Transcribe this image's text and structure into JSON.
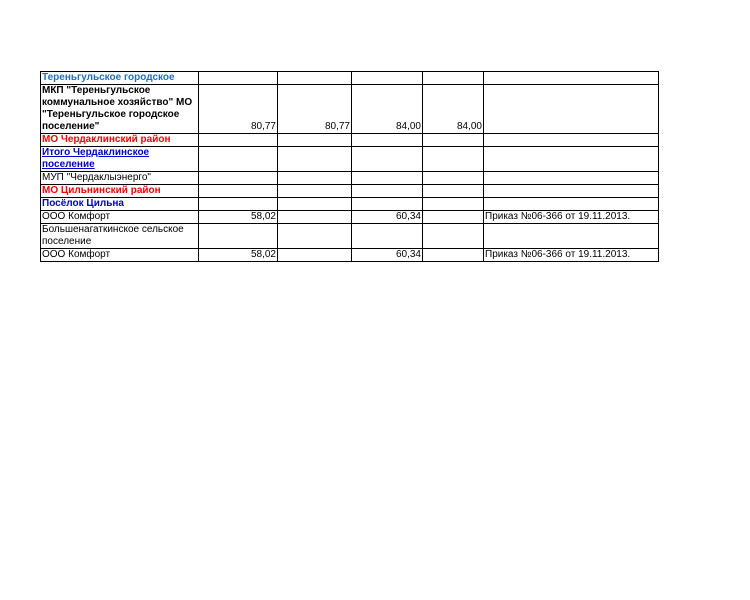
{
  "colors": {
    "light_blue": "#1f6fc0",
    "blue": "#0000cc",
    "red": "#ff0000"
  },
  "rows": [
    {
      "name": "Тереньгульское городское",
      "c1": "",
      "c2": "",
      "c3": "",
      "c4": "",
      "note": ""
    },
    {
      "name": "МКП \"Тереньгульское коммунальное хозяйство\" МО \"Тереньгульское городское поселение\"",
      "c1": "80,77",
      "c2": "80,77",
      "c3": "84,00",
      "c4": "84,00",
      "note": ""
    },
    {
      "name": "МО Чердаклинский район",
      "c1": "",
      "c2": "",
      "c3": "",
      "c4": "",
      "note": ""
    },
    {
      "name": "Итого Чердаклинское поселение",
      "c1": "",
      "c2": "",
      "c3": "",
      "c4": "",
      "note": ""
    },
    {
      "name": "МУП  \"Чердаклыэнерго\"",
      "c1": "",
      "c2": "",
      "c3": "",
      "c4": "",
      "note": ""
    },
    {
      "name": "МО Цильнинский район",
      "c1": "",
      "c2": "",
      "c3": "",
      "c4": "",
      "note": ""
    },
    {
      "name": "Посёлок Цильна",
      "c1": "",
      "c2": "",
      "c3": "",
      "c4": "",
      "note": ""
    },
    {
      "name": "ООО Комфорт",
      "c1": "58,02",
      "c2": "",
      "c3": "60,34",
      "c4": "",
      "note": "Приказ №06-366 от 19.11.2013."
    },
    {
      "name": "Большенагаткинское сельское поселение",
      "c1": "",
      "c2": "",
      "c3": "",
      "c4": "",
      "note": ""
    },
    {
      "name": "ООО Комфорт",
      "c1": "58,02",
      "c2": "",
      "c3": "60,34",
      "c4": "",
      "note": "Приказ №06-366 от 19.11.2013."
    }
  ]
}
